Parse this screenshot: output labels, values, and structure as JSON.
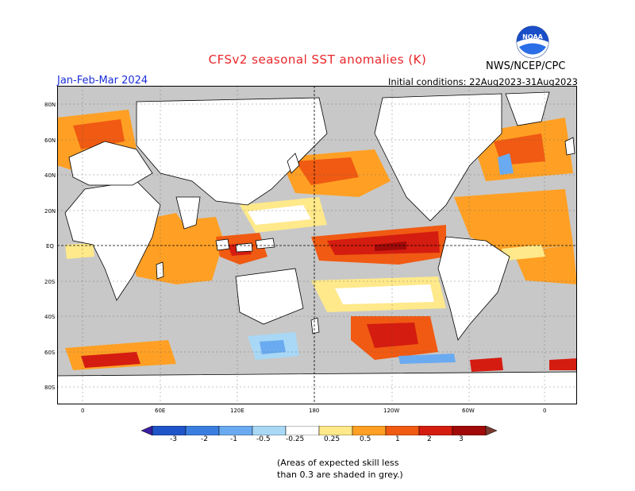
{
  "title": "CFSv2 seasonal SST anomalies (K)",
  "period": "Jan-Feb-Mar 2024",
  "initial_conditions": "Initial conditions: 22Aug2023-31Aug2023",
  "agency": "NWS/NCEP/CPC",
  "logo_text": "NOAA",
  "lat_labels": [
    "80N",
    "60N",
    "40N",
    "20N",
    "EQ",
    "20S",
    "40S",
    "60S",
    "80S"
  ],
  "lon_labels": [
    "0",
    "60E",
    "120E",
    "180",
    "120W",
    "60W",
    "0"
  ],
  "colorbar": {
    "labels": [
      "-3",
      "-2",
      "-1",
      "-0.5",
      "-0.25",
      "0.25",
      "0.5",
      "1",
      "2",
      "3"
    ],
    "colors": [
      "#3a1fa0",
      "#1f55c8",
      "#3a7fe0",
      "#6aaaf0",
      "#a8d8f5",
      "#ffffff",
      "#ffe98a",
      "#ffa024",
      "#f05a12",
      "#d41c10",
      "#a00a08",
      "#7a3a30"
    ]
  },
  "note_line1": "(Areas of expected skill less",
  "note_line2": "than 0.3 are shaded in grey.)",
  "colors": {
    "land": "#ffffff",
    "ocean_grey": "#c8c8c8",
    "title_red": "#e8262a",
    "period_blue": "#1c2fd6"
  }
}
